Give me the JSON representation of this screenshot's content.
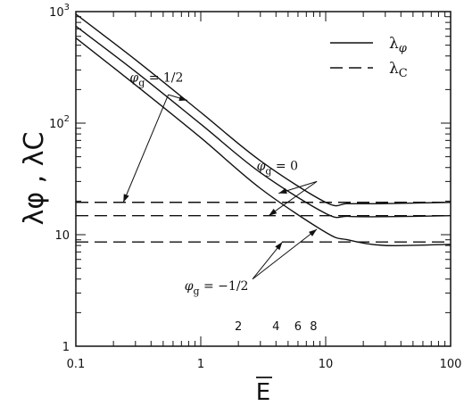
{
  "chart_data": {
    "type": "line",
    "x_scale": "log",
    "y_scale": "log",
    "xlim": [
      0.1,
      100
    ],
    "ylim": [
      1,
      1000
    ],
    "grid": false,
    "legend_position": "top-right",
    "xlabel": "E",
    "ylabel": "λφ , λC",
    "x_ticks": [
      "0.1",
      "1",
      "10",
      "100"
    ],
    "y_ticks": [
      {
        "base": "1",
        "exp": ""
      },
      {
        "base": "10",
        "exp": ""
      },
      {
        "base": "10",
        "exp": "2"
      },
      {
        "base": "10",
        "exp": "3"
      }
    ],
    "inset_ticks": [
      "2",
      "4",
      "6",
      "8"
    ],
    "legend": [
      {
        "label": "λφ",
        "style": "solid"
      },
      {
        "label": "λC",
        "style": "dashed"
      }
    ],
    "series": [
      {
        "name": "λφ",
        "group": "φg = 1/2",
        "style": "solid",
        "x": [
          0.1,
          0.3,
          1,
          3,
          10,
          15,
          30,
          100
        ],
        "y": [
          950,
          370,
          125,
          46,
          19.5,
          19,
          19,
          19.5
        ]
      },
      {
        "name": "λφ",
        "group": "φg = 0",
        "style": "solid",
        "x": [
          0.1,
          0.3,
          1,
          3,
          10,
          15,
          30,
          100
        ],
        "y": [
          740,
          290,
          98,
          36,
          15.5,
          14.6,
          14.5,
          14.8
        ]
      },
      {
        "name": "λφ",
        "group": "φg = -1/2",
        "style": "solid",
        "x": [
          0.1,
          0.3,
          1,
          3,
          10,
          15,
          30,
          100
        ],
        "y": [
          580,
          220,
          74,
          26,
          10.5,
          9.0,
          8.0,
          8.2
        ]
      },
      {
        "name": "λC",
        "group": "φg = 1/2",
        "style": "dashed",
        "x": [
          0.1,
          100
        ],
        "y": [
          19.5,
          19.5
        ]
      },
      {
        "name": "λC",
        "group": "φg = 0",
        "style": "dashed",
        "x": [
          0.1,
          100
        ],
        "y": [
          14.8,
          14.8
        ]
      },
      {
        "name": "λC",
        "group": "φg = -1/2",
        "style": "dashed",
        "x": [
          0.1,
          100
        ],
        "y": [
          8.6,
          8.6
        ]
      }
    ],
    "annotations": [
      {
        "text": "φg = 1/2",
        "x": 0.27,
        "y": 235
      },
      {
        "text": "φg = 0",
        "x": 2.8,
        "y": 38
      },
      {
        "text": "φg = −1/2",
        "x": 0.74,
        "y": 3.2
      }
    ]
  }
}
